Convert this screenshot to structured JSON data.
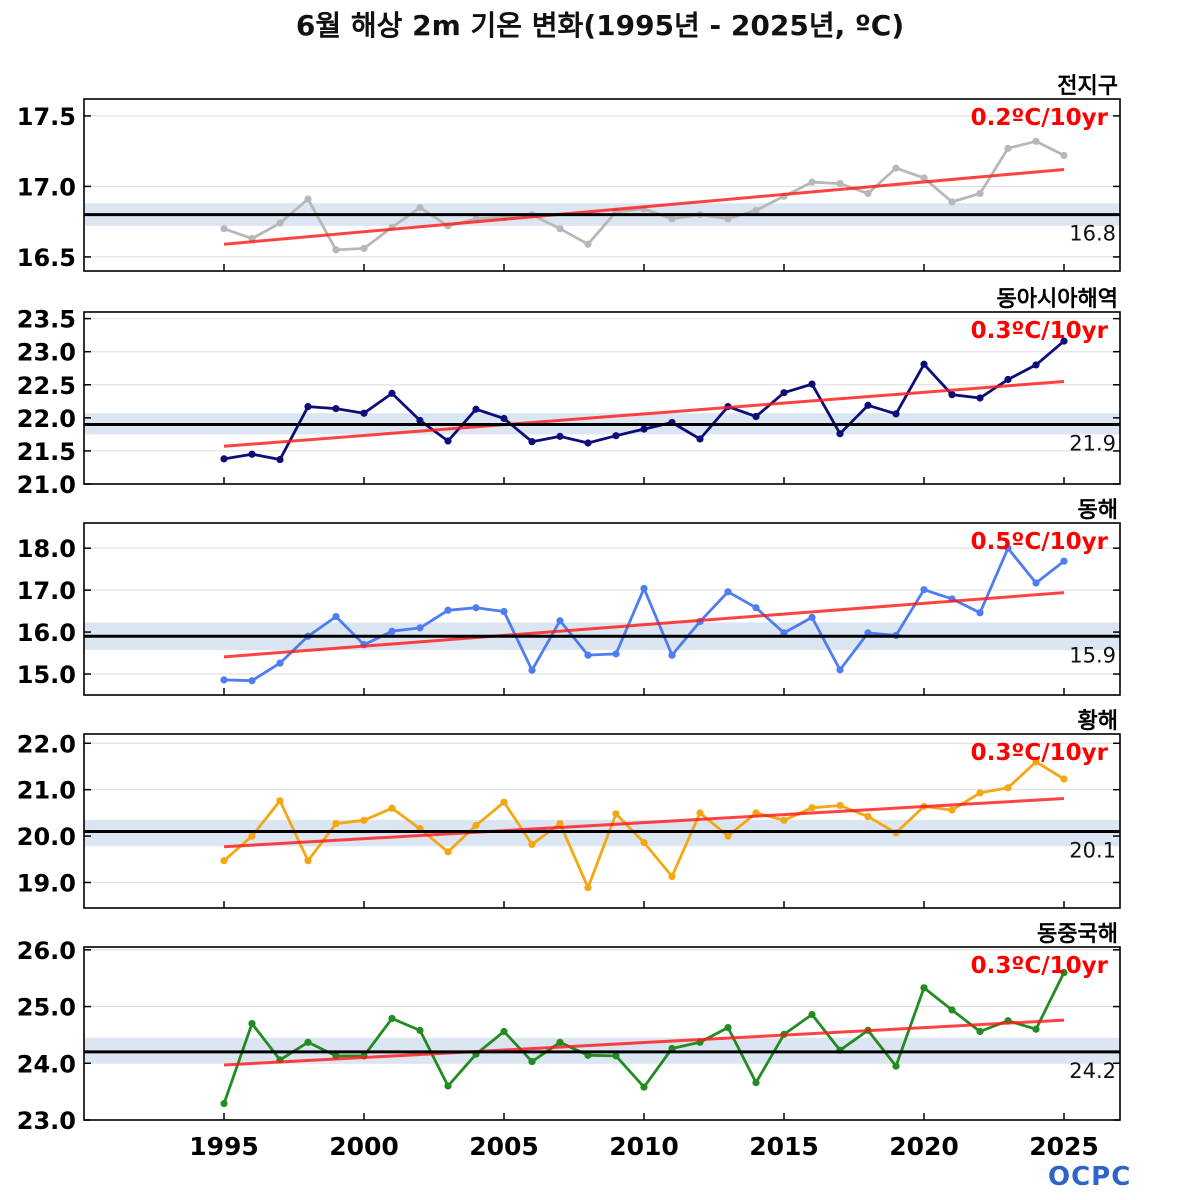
{
  "title": "6월 해상 2m 기온 변화(1995년 - 2025년, ºC)",
  "logo_text": "OCPC",
  "chart_data": [
    {
      "type": "line",
      "region": "전지구",
      "trend_label": "0.2ºC/10yr",
      "mean_label": "16.8",
      "mean": 16.8,
      "mean_band": [
        16.72,
        16.88
      ],
      "trend": [
        16.59,
        17.12
      ],
      "color": "#b8b8b8",
      "ylim": [
        16.4,
        17.62
      ],
      "yticks": [
        16.5,
        17.0,
        17.5
      ],
      "ytick_labels": [
        "16.5",
        "17.0",
        "17.5"
      ],
      "x": [
        1995,
        1996,
        1997,
        1998,
        1999,
        2000,
        2001,
        2002,
        2003,
        2004,
        2005,
        2006,
        2007,
        2008,
        2009,
        2010,
        2011,
        2012,
        2013,
        2014,
        2015,
        2016,
        2017,
        2018,
        2019,
        2020,
        2021,
        2022,
        2023,
        2024,
        2025
      ],
      "values": [
        16.7,
        16.63,
        16.74,
        16.91,
        16.55,
        16.56,
        16.71,
        16.85,
        16.72,
        16.77,
        16.78,
        16.8,
        16.7,
        16.59,
        16.82,
        16.84,
        16.77,
        16.8,
        16.77,
        16.83,
        16.93,
        17.03,
        17.02,
        16.95,
        17.13,
        17.06,
        16.89,
        16.95,
        17.27,
        17.32,
        17.22
      ]
    },
    {
      "type": "line",
      "region": "동아시아해역",
      "trend_label": "0.3ºC/10yr",
      "mean_label": "21.9",
      "mean": 21.9,
      "mean_band": [
        21.75,
        22.07
      ],
      "trend": [
        21.57,
        22.55
      ],
      "color": "#0d0d7a",
      "ylim": [
        21.0,
        23.6
      ],
      "yticks": [
        21.0,
        21.5,
        22.0,
        22.5,
        23.0,
        23.5
      ],
      "ytick_labels": [
        "21.0",
        "21.5",
        "22.0",
        "22.5",
        "23.0",
        "23.5"
      ],
      "x": [
        1995,
        1996,
        1997,
        1998,
        1999,
        2000,
        2001,
        2002,
        2003,
        2004,
        2005,
        2006,
        2007,
        2008,
        2009,
        2010,
        2011,
        2012,
        2013,
        2014,
        2015,
        2016,
        2017,
        2018,
        2019,
        2020,
        2021,
        2022,
        2023,
        2024,
        2025
      ],
      "values": [
        21.38,
        21.45,
        21.37,
        22.17,
        22.14,
        22.07,
        22.37,
        21.96,
        21.65,
        22.13,
        21.99,
        21.64,
        21.72,
        21.62,
        21.73,
        21.83,
        21.93,
        21.68,
        22.17,
        22.02,
        22.38,
        22.51,
        21.76,
        22.19,
        22.06,
        22.81,
        22.35,
        22.3,
        22.58,
        22.8,
        23.16
      ]
    },
    {
      "type": "line",
      "region": "동해",
      "trend_label": "0.5ºC/10yr",
      "mean_label": "15.9",
      "mean": 15.9,
      "mean_band": [
        15.57,
        16.23
      ],
      "trend": [
        15.41,
        16.94
      ],
      "color": "#4d7df0",
      "ylim": [
        14.5,
        18.6
      ],
      "yticks": [
        15.0,
        16.0,
        17.0,
        18.0
      ],
      "ytick_labels": [
        "15.0",
        "16.0",
        "17.0",
        "18.0"
      ],
      "x": [
        1995,
        1996,
        1997,
        1998,
        1999,
        2000,
        2001,
        2002,
        2003,
        2004,
        2005,
        2006,
        2007,
        2008,
        2009,
        2010,
        2011,
        2012,
        2013,
        2014,
        2015,
        2016,
        2017,
        2018,
        2019,
        2020,
        2021,
        2022,
        2023,
        2024,
        2025
      ],
      "values": [
        14.86,
        14.84,
        15.26,
        15.9,
        16.37,
        15.7,
        16.02,
        16.1,
        16.52,
        16.58,
        16.49,
        15.09,
        16.27,
        15.45,
        15.48,
        17.04,
        15.45,
        16.25,
        16.96,
        16.58,
        15.98,
        16.35,
        15.1,
        15.98,
        15.92,
        17.01,
        16.79,
        16.46,
        18.0,
        17.17,
        17.69
      ]
    },
    {
      "type": "line",
      "region": "황해",
      "trend_label": "0.3ºC/10yr",
      "mean_label": "20.1",
      "mean": 20.1,
      "mean_band": [
        19.78,
        20.35
      ],
      "trend": [
        19.77,
        20.81
      ],
      "color": "#f5a712",
      "ylim": [
        18.45,
        22.2
      ],
      "yticks": [
        19.0,
        20.0,
        21.0,
        22.0
      ],
      "ytick_labels": [
        "19.0",
        "20.0",
        "21.0",
        "22.0"
      ],
      "x": [
        1995,
        1996,
        1997,
        1998,
        1999,
        2000,
        2001,
        2002,
        2003,
        2004,
        2005,
        2006,
        2007,
        2008,
        2009,
        2010,
        2011,
        2012,
        2013,
        2014,
        2015,
        2016,
        2017,
        2018,
        2019,
        2020,
        2021,
        2022,
        2023,
        2024,
        2025
      ],
      "values": [
        19.47,
        20.0,
        20.76,
        19.47,
        20.27,
        20.34,
        20.6,
        20.16,
        19.66,
        20.23,
        20.73,
        19.82,
        20.27,
        18.89,
        20.48,
        19.86,
        19.13,
        20.5,
        20.0,
        20.5,
        20.34,
        20.61,
        20.66,
        20.42,
        20.07,
        20.64,
        20.56,
        20.93,
        21.04,
        21.6,
        21.23
      ]
    },
    {
      "type": "line",
      "region": "동중국해",
      "trend_label": "0.3ºC/10yr",
      "mean_label": "24.2",
      "mean": 24.2,
      "mean_band": [
        24.0,
        24.45
      ],
      "trend": [
        23.97,
        24.76
      ],
      "color": "#228b22",
      "ylim": [
        23.0,
        26.05
      ],
      "yticks": [
        23.0,
        24.0,
        25.0,
        26.0
      ],
      "ytick_labels": [
        "23.0",
        "24.0",
        "25.0",
        "26.0"
      ],
      "x": [
        1995,
        1996,
        1997,
        1998,
        1999,
        2000,
        2001,
        2002,
        2003,
        2004,
        2005,
        2006,
        2007,
        2008,
        2009,
        2010,
        2011,
        2012,
        2013,
        2014,
        2015,
        2016,
        2017,
        2018,
        2019,
        2020,
        2021,
        2022,
        2023,
        2024,
        2025
      ],
      "values": [
        23.29,
        24.7,
        24.06,
        24.37,
        24.13,
        24.13,
        24.79,
        24.58,
        23.6,
        24.16,
        24.56,
        24.03,
        24.37,
        24.14,
        24.13,
        23.58,
        24.26,
        24.37,
        24.63,
        23.66,
        24.51,
        24.86,
        24.23,
        24.58,
        23.95,
        25.33,
        24.94,
        24.56,
        24.75,
        24.6,
        25.6
      ]
    }
  ],
  "xaxis": {
    "ticks": [
      1995,
      2000,
      2005,
      2010,
      2015,
      2020,
      2025
    ],
    "tick_labels": [
      "1995",
      "2000",
      "2005",
      "2010",
      "2015",
      "2020",
      "2025"
    ],
    "xlim": [
      1990,
      2027
    ]
  }
}
